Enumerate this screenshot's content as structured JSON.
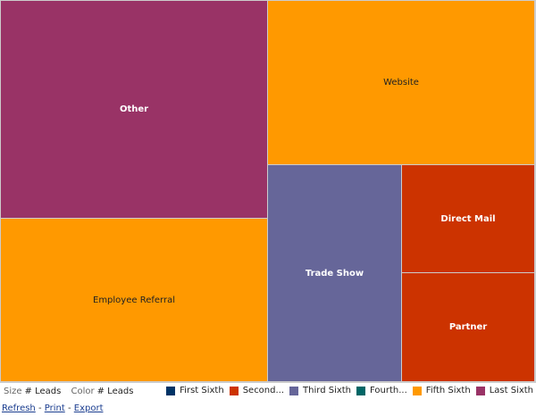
{
  "chart_data": {
    "type": "treemap",
    "size_measure": "# Leads",
    "color_measure": "# Leads",
    "tiles": [
      {
        "label": "Other",
        "approx_share_pct": 28.6,
        "color_bin": "Last Sixth",
        "color": "#993366"
      },
      {
        "label": "Website",
        "approx_share_pct": 21.6,
        "color_bin": "Fifth Sixth",
        "color": "#FF9900"
      },
      {
        "label": "Employee Referral",
        "approx_share_pct": 21.4,
        "color_bin": "Fifth Sixth",
        "color": "#FF9900"
      },
      {
        "label": "Trade Show",
        "approx_share_pct": 14.3,
        "color_bin": "Third Sixth",
        "color": "#666699"
      },
      {
        "label": "Direct Mail",
        "approx_share_pct": 7.0,
        "color_bin": "Second Sixth",
        "color": "#CC3300"
      },
      {
        "label": "Partner",
        "approx_share_pct": 7.1,
        "color_bin": "Second Sixth",
        "color": "#CC3300"
      }
    ],
    "legend": [
      {
        "label": "First Sixth",
        "color": "#003366"
      },
      {
        "label": "Second...",
        "color": "#CC3300"
      },
      {
        "label": "Third Sixth",
        "color": "#666699"
      },
      {
        "label": "Fourth...",
        "color": "#006666"
      },
      {
        "label": "Fifth Sixth",
        "color": "#FF9900"
      },
      {
        "label": "Last Sixth",
        "color": "#993366"
      }
    ],
    "legend_position": "bottom-right"
  },
  "footer": {
    "size_label": "Size",
    "size_value": "# Leads",
    "color_label": "Color",
    "color_value": "# Leads"
  },
  "links": {
    "refresh": "Refresh",
    "print": "Print",
    "export": "Export",
    "sep": "-"
  }
}
